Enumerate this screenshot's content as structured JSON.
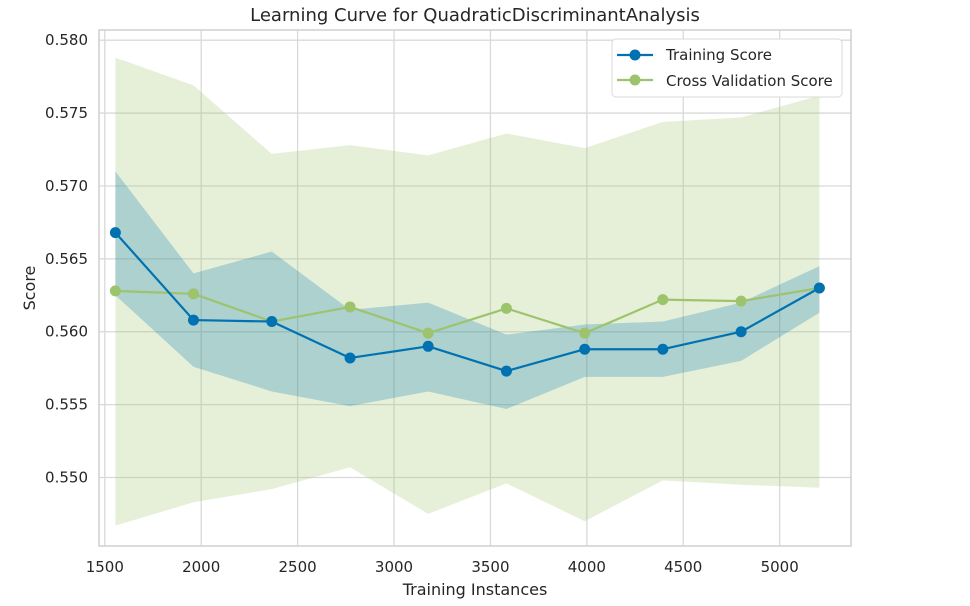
{
  "chart_data": {
    "type": "line",
    "title": "Learning Curve for QuadraticDiscriminantAnalysis",
    "xlabel": "Training Instances",
    "ylabel": "Score",
    "xlim": [
      1470,
      5370
    ],
    "ylim": [
      0.5453,
      0.5807
    ],
    "xticks": [
      1500,
      2000,
      2500,
      3000,
      3500,
      4000,
      4500,
      5000
    ],
    "xtick_labels": [
      "1500",
      "2000",
      "2500",
      "3000",
      "3500",
      "4000",
      "4500",
      "5000"
    ],
    "yticks": [
      0.55,
      0.555,
      0.56,
      0.565,
      0.57,
      0.575,
      0.58
    ],
    "ytick_labels": [
      "0.550",
      "0.555",
      "0.560",
      "0.565",
      "0.570",
      "0.575",
      "0.580"
    ],
    "grid": true,
    "legend_position": "top-right",
    "x": [
      1555,
      1960,
      2366,
      2772,
      3177,
      3583,
      3989,
      4394,
      4800,
      5206
    ],
    "series": [
      {
        "name": "Training Score",
        "color": "#0072B2",
        "values": [
          0.5668,
          0.5608,
          0.5607,
          0.5582,
          0.559,
          0.5573,
          0.5588,
          0.5588,
          0.56,
          0.563
        ],
        "band_upper": [
          0.571,
          0.564,
          0.5655,
          0.5615,
          0.562,
          0.5598,
          0.5605,
          0.5607,
          0.562,
          0.5645
        ],
        "band_lower": [
          0.5625,
          0.5576,
          0.5559,
          0.5549,
          0.5559,
          0.5547,
          0.5569,
          0.5569,
          0.558,
          0.5613
        ]
      },
      {
        "name": "Cross Validation Score",
        "color": "#9DC46D",
        "values": [
          0.5628,
          0.5626,
          0.5607,
          0.5617,
          0.5599,
          0.5616,
          0.5599,
          0.5622,
          0.5621,
          0.563
        ],
        "band_upper": [
          0.5788,
          0.5769,
          0.5722,
          0.5728,
          0.5721,
          0.5736,
          0.5726,
          0.5744,
          0.5747,
          0.5762
        ],
        "band_lower": [
          0.5467,
          0.5483,
          0.5492,
          0.5507,
          0.5475,
          0.5496,
          0.547,
          0.5498,
          0.5495,
          0.5493
        ]
      }
    ]
  }
}
